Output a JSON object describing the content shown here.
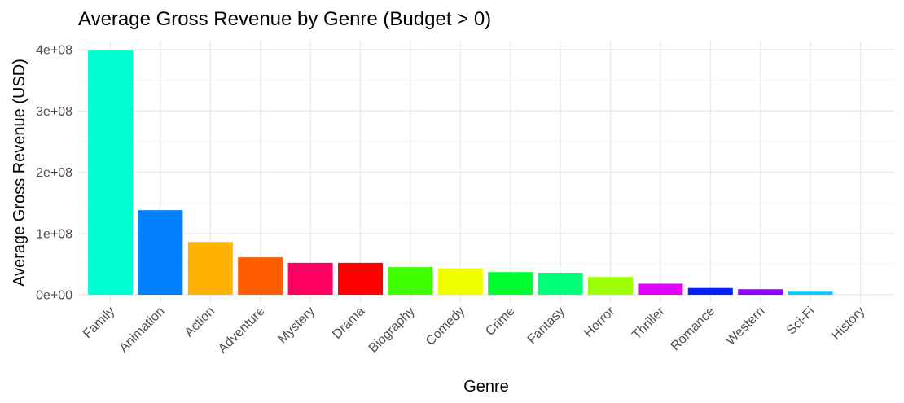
{
  "chart_data": {
    "type": "bar",
    "title": "Average Gross Revenue by Genre (Budget > 0)",
    "xlabel": "Genre",
    "ylabel": "Average Gross Revenue (USD)",
    "categories": [
      "Family",
      "Animation",
      "Action",
      "Adventure",
      "Mystery",
      "Drama",
      "Biography",
      "Comedy",
      "Crime",
      "Fantasy",
      "Horror",
      "Thriller",
      "Romance",
      "Western",
      "Sci-Fi",
      "History"
    ],
    "values": [
      399000000,
      138000000,
      86000000,
      61000000,
      52000000,
      52000000,
      45000000,
      43000000,
      37000000,
      36000000,
      29000000,
      18000000,
      11000000,
      9000000,
      5000000,
      0
    ],
    "colors": [
      "#00FFD5",
      "#0080FF",
      "#FFB300",
      "#FF5E00",
      "#FF0062",
      "#FF0000",
      "#40FF00",
      "#EEFF00",
      "#00FF2E",
      "#00FF7A",
      "#9DFF00",
      "#E600FF",
      "#0022FF",
      "#9000FF",
      "#00CCFF",
      "#FF0000"
    ],
    "ylim": [
      0,
      400000000
    ],
    "yticks": [
      0,
      100000000,
      200000000,
      300000000,
      400000000
    ],
    "ytick_labels": [
      "0e+00",
      "1e+08",
      "2e+08",
      "3e+08",
      "4e+08"
    ],
    "grid": true,
    "legend": "none"
  }
}
